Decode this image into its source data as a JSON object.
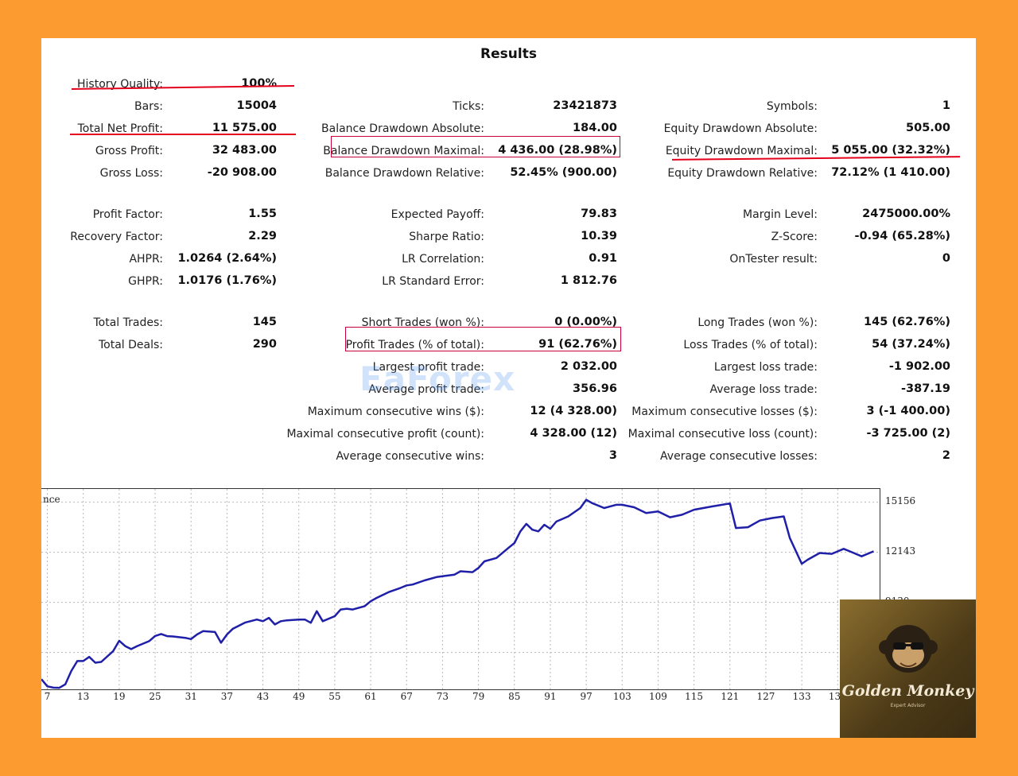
{
  "title": "Results",
  "col1": [
    {
      "label": "History Quality:",
      "value": "100%"
    },
    {
      "label": "Bars:",
      "value": "15004"
    },
    {
      "label": "Total Net Profit:",
      "value": "11 575.00"
    },
    {
      "label": "Gross Profit:",
      "value": "32 483.00"
    },
    {
      "label": "Gross Loss:",
      "value": "-20 908.00"
    },
    {
      "label": "Profit Factor:",
      "value": "1.55"
    },
    {
      "label": "Recovery Factor:",
      "value": "2.29"
    },
    {
      "label": "AHPR:",
      "value": "1.0264 (2.64%)"
    },
    {
      "label": "GHPR:",
      "value": "1.0176 (1.76%)"
    },
    {
      "label": "Total Trades:",
      "value": "145"
    },
    {
      "label": "Total Deals:",
      "value": "290"
    }
  ],
  "col2": [
    {
      "label": "Ticks:",
      "value": "23421873"
    },
    {
      "label": "Balance Drawdown Absolute:",
      "value": "184.00"
    },
    {
      "label": "Balance Drawdown Maximal:",
      "value": "4 436.00 (28.98%)"
    },
    {
      "label": "Balance Drawdown Relative:",
      "value": "52.45% (900.00)"
    },
    {
      "label": "Expected Payoff:",
      "value": "79.83"
    },
    {
      "label": "Sharpe Ratio:",
      "value": "10.39"
    },
    {
      "label": "LR Correlation:",
      "value": "0.91"
    },
    {
      "label": "LR Standard Error:",
      "value": "1 812.76"
    },
    {
      "label": "Short Trades (won %):",
      "value": "0 (0.00%)"
    },
    {
      "label": "Profit Trades (% of total):",
      "value": "91 (62.76%)"
    },
    {
      "label": "Largest profit trade:",
      "value": "2 032.00"
    },
    {
      "label": "Average profit trade:",
      "value": "356.96"
    },
    {
      "label": "Maximum consecutive wins ($):",
      "value": "12 (4 328.00)"
    },
    {
      "label": "Maximal consecutive profit (count):",
      "value": "4 328.00 (12)"
    },
    {
      "label": "Average consecutive wins:",
      "value": "3"
    }
  ],
  "col3": [
    {
      "label": "Symbols:",
      "value": "1"
    },
    {
      "label": "Equity Drawdown Absolute:",
      "value": "505.00"
    },
    {
      "label": "Equity Drawdown Maximal:",
      "value": "5 055.00 (32.32%)"
    },
    {
      "label": "Equity Drawdown Relative:",
      "value": "72.12% (1 410.00)"
    },
    {
      "label": "Margin Level:",
      "value": "2475000.00%"
    },
    {
      "label": "Z-Score:",
      "value": "-0.94 (65.28%)"
    },
    {
      "label": "OnTester result:",
      "value": "0"
    },
    {
      "label": "Long Trades (won %):",
      "value": "145 (62.76%)"
    },
    {
      "label": "Loss Trades (% of total):",
      "value": "54 (37.24%)"
    },
    {
      "label": "Largest loss trade:",
      "value": "-1 902.00"
    },
    {
      "label": "Average loss trade:",
      "value": "-387.19"
    },
    {
      "label": "Maximum consecutive losses ($):",
      "value": "3 (-1 400.00)"
    },
    {
      "label": "Maximal consecutive loss (count):",
      "value": "-3 725.00 (2)"
    },
    {
      "label": "Average consecutive losses:",
      "value": "2"
    }
  ],
  "watermark": "EaForex",
  "logo": {
    "name": "Golden Monkey",
    "tagline": "Expert Advisor"
  },
  "chart_data": {
    "type": "line",
    "series_label_partial": "nce",
    "line_color": "#1f1fa8",
    "yticks": [
      15156,
      12143,
      9130
    ],
    "xticks": [
      7,
      13,
      19,
      25,
      31,
      37,
      43,
      49,
      55,
      61,
      67,
      73,
      79,
      85,
      91,
      97,
      103,
      109,
      115,
      121,
      127,
      133,
      139
    ],
    "xlim": [
      6,
      146
    ],
    "ylim": [
      3900,
      15950
    ],
    "x": [
      6,
      7,
      8,
      9,
      10,
      11,
      12,
      13,
      14,
      15,
      16,
      18,
      19,
      20,
      21,
      22,
      24,
      25,
      26,
      27,
      28,
      30,
      31,
      32,
      33,
      35,
      36,
      37,
      38,
      40,
      42,
      43,
      44,
      45,
      46,
      47,
      49,
      50,
      51,
      52,
      53,
      55,
      56,
      57,
      58,
      60,
      61,
      62,
      64,
      66,
      67,
      68,
      70,
      72,
      73,
      75,
      76,
      78,
      79,
      80,
      82,
      84,
      85,
      86,
      87,
      88,
      89,
      90,
      91,
      92,
      94,
      96,
      97,
      98,
      100,
      102,
      103,
      105,
      107,
      109,
      111,
      113,
      115,
      118,
      121,
      122,
      124,
      126,
      128,
      130,
      131,
      133,
      134,
      136,
      138,
      140,
      141,
      143,
      145
    ],
    "y": [
      4510,
      4080,
      4000,
      3990,
      4200,
      5000,
      5600,
      5600,
      5850,
      5500,
      5550,
      6200,
      6820,
      6500,
      6320,
      6500,
      6800,
      7110,
      7230,
      7100,
      7080,
      7000,
      6920,
      7200,
      7400,
      7350,
      6700,
      7200,
      7550,
      7910,
      8100,
      8000,
      8200,
      7800,
      8000,
      8050,
      8100,
      8100,
      7900,
      8600,
      8000,
      8300,
      8700,
      8750,
      8700,
      8900,
      9200,
      9400,
      9750,
      10000,
      10150,
      10200,
      10450,
      10650,
      10700,
      10800,
      11000,
      10950,
      11200,
      11600,
      11800,
      12400,
      12700,
      13400,
      13850,
      13500,
      13400,
      13800,
      13560,
      13990,
      14300,
      14800,
      15300,
      15100,
      14800,
      15000,
      15000,
      14850,
      14500,
      14600,
      14250,
      14400,
      14700,
      14900,
      15080,
      13600,
      13650,
      14050,
      14200,
      14300,
      13000,
      11450,
      11700,
      12100,
      12050,
      12350,
      12200,
      11900,
      12200
    ]
  }
}
